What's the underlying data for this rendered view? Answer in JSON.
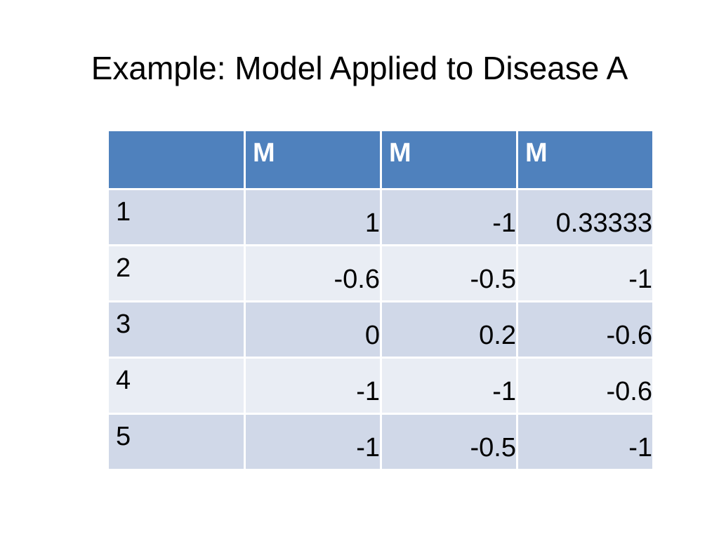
{
  "slide": {
    "title": "Example: Model Applied to Disease A"
  },
  "table": {
    "header": [
      "",
      "M",
      "M",
      "M"
    ],
    "rows": [
      {
        "label": "1",
        "values": [
          "1",
          "-1",
          "0.33333"
        ]
      },
      {
        "label": "2",
        "values": [
          "-0.6",
          "-0.5",
          "-1"
        ]
      },
      {
        "label": "3",
        "values": [
          "0",
          "0.2",
          "-0.6"
        ]
      },
      {
        "label": "4",
        "values": [
          "-1",
          "-1",
          "-0.6"
        ]
      },
      {
        "label": "5",
        "values": [
          "-1",
          "-0.5",
          "-1"
        ]
      }
    ]
  },
  "colors": {
    "header_bg": "#4f81bd",
    "row_odd_bg": "#d0d8e8",
    "row_even_bg": "#e9edf4"
  }
}
